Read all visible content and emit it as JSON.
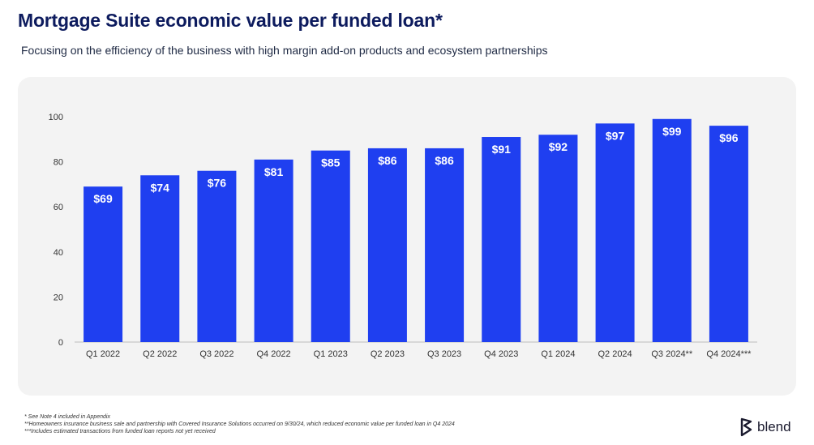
{
  "title": "Mortgage Suite economic value per funded loan*",
  "subtitle": "Focusing on the efficiency of the business with high margin add-on products and ecosystem partnerships",
  "footnotes": [
    "* See Note 4 included in Appendix",
    "**Homeowners insurance business sale and partnership with Covered Insurance Solutions occurred on 9/30/24, which reduced economic value per funded loan in Q4 2024",
    "***Includes estimated transactions from funded loan reports not yet received"
  ],
  "logo": {
    "text": "blend",
    "icon": "blend-logo-icon"
  },
  "colors": {
    "bar": "#1f3ff0",
    "title": "#0d1b5e",
    "panel": "#f3f3f3"
  },
  "chart_data": {
    "type": "bar",
    "categories": [
      "Q1 2022",
      "Q2 2022",
      "Q3 2022",
      "Q4 2022",
      "Q1 2023",
      "Q2 2023",
      "Q3 2023",
      "Q4 2023",
      "Q1 2024",
      "Q2 2024",
      "Q3 2024**",
      "Q4 2024***"
    ],
    "values": [
      69,
      74,
      76,
      81,
      85,
      86,
      86,
      91,
      92,
      97,
      99,
      96
    ],
    "data_labels": [
      "$69",
      "$74",
      "$76",
      "$81",
      "$85",
      "$86",
      "$86",
      "$91",
      "$92",
      "$97",
      "$99",
      "$96"
    ],
    "yticks": [
      "0",
      "20",
      "40",
      "60",
      "80",
      "100"
    ],
    "ylim": [
      0,
      100
    ],
    "grid": false,
    "legend": "none"
  }
}
